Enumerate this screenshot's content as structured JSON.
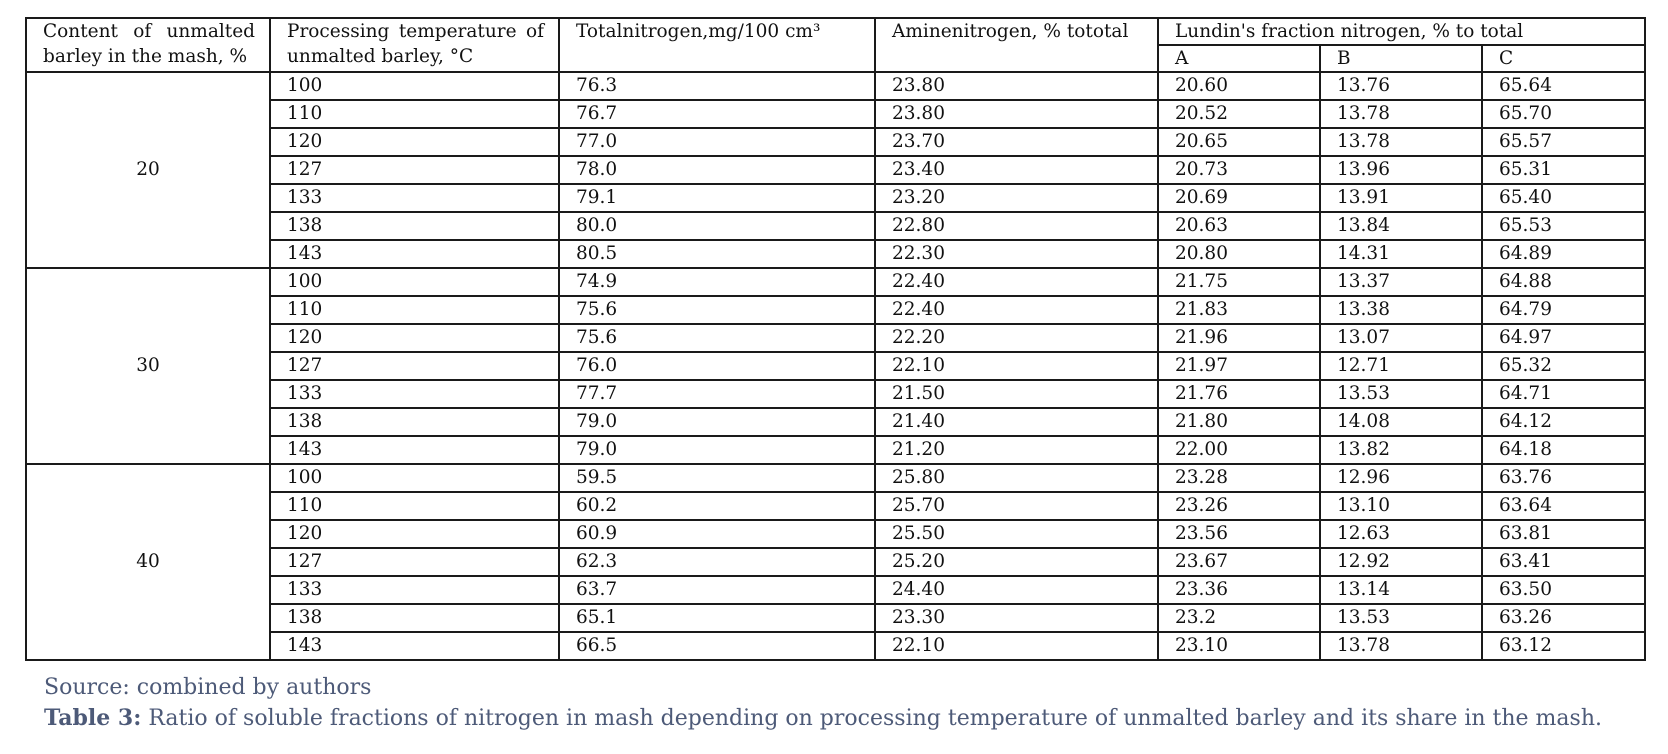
{
  "table": {
    "headers": {
      "content": "Content of unmalted barley in the mash, %",
      "temperature": "Processing temperature of unmalted barley, °C",
      "total_nitrogen": "Totalnitrogen,mg/100 cm³",
      "amine_nitrogen": "Aminenitrogen, % tototal",
      "lundin": "Lundin's fraction nitrogen, % to total",
      "lundin_a": "A",
      "lundin_b": "B",
      "lundin_c": "C"
    },
    "groups": [
      {
        "content": "20",
        "rows": [
          {
            "temp": "100",
            "total": "76.3",
            "amine": "23.80",
            "a": "20.60",
            "b": "13.76",
            "c": "65.64"
          },
          {
            "temp": "110",
            "total": "76.7",
            "amine": "23.80",
            "a": "20.52",
            "b": "13.78",
            "c": "65.70"
          },
          {
            "temp": "120",
            "total": "77.0",
            "amine": "23.70",
            "a": "20.65",
            "b": "13.78",
            "c": "65.57"
          },
          {
            "temp": "127",
            "total": "78.0",
            "amine": "23.40",
            "a": "20.73",
            "b": "13.96",
            "c": "65.31"
          },
          {
            "temp": "133",
            "total": "79.1",
            "amine": "23.20",
            "a": "20.69",
            "b": "13.91",
            "c": "65.40"
          },
          {
            "temp": "138",
            "total": "80.0",
            "amine": "22.80",
            "a": "20.63",
            "b": "13.84",
            "c": "65.53"
          },
          {
            "temp": "143",
            "total": "80.5",
            "amine": "22.30",
            "a": "20.80",
            "b": "14.31",
            "c": "64.89"
          }
        ]
      },
      {
        "content": "30",
        "rows": [
          {
            "temp": "100",
            "total": "74.9",
            "amine": "22.40",
            "a": "21.75",
            "b": "13.37",
            "c": "64.88"
          },
          {
            "temp": "110",
            "total": "75.6",
            "amine": "22.40",
            "a": "21.83",
            "b": "13.38",
            "c": "64.79"
          },
          {
            "temp": "120",
            "total": "75.6",
            "amine": "22.20",
            "a": "21.96",
            "b": "13.07",
            "c": "64.97"
          },
          {
            "temp": "127",
            "total": "76.0",
            "amine": "22.10",
            "a": "21.97",
            "b": "12.71",
            "c": "65.32"
          },
          {
            "temp": "133",
            "total": "77.7",
            "amine": "21.50",
            "a": "21.76",
            "b": "13.53",
            "c": "64.71"
          },
          {
            "temp": "138",
            "total": "79.0",
            "amine": "21.40",
            "a": "21.80",
            "b": "14.08",
            "c": "64.12"
          },
          {
            "temp": "143",
            "total": "79.0",
            "amine": "21.20",
            "a": "22.00",
            "b": "13.82",
            "c": "64.18"
          }
        ]
      },
      {
        "content": "40",
        "rows": [
          {
            "temp": "100",
            "total": "59.5",
            "amine": "25.80",
            "a": "23.28",
            "b": "12.96",
            "c": "63.76"
          },
          {
            "temp": "110",
            "total": "60.2",
            "amine": "25.70",
            "a": "23.26",
            "b": "13.10",
            "c": "63.64"
          },
          {
            "temp": "120",
            "total": "60.9",
            "amine": "25.50",
            "a": "23.56",
            "b": "12.63",
            "c": "63.81"
          },
          {
            "temp": "127",
            "total": "62.3",
            "amine": "25.20",
            "a": "23.67",
            "b": "12.92",
            "c": "63.41"
          },
          {
            "temp": "133",
            "total": "63.7",
            "amine": "24.40",
            "a": "23.36",
            "b": "13.14",
            "c": "63.50"
          },
          {
            "temp": "138",
            "total": "65.1",
            "amine": "23.30",
            "a": "23.2",
            "b": "13.53",
            "c": "63.26"
          },
          {
            "temp": "143",
            "total": "66.5",
            "amine": "22.10",
            "a": "23.10",
            "b": "13.78",
            "c": "63.12"
          }
        ]
      }
    ]
  },
  "source_note": "Source: combined by authors",
  "caption": {
    "label": "Table 3:",
    "text": " Ratio of soluble fractions of nitrogen in mash depending on processing temperature of unmalted barley and its share in the mash."
  },
  "colors": {
    "caption_text": "#4d5a78",
    "table_border": "#1a1a1a",
    "table_text": "#111111"
  }
}
